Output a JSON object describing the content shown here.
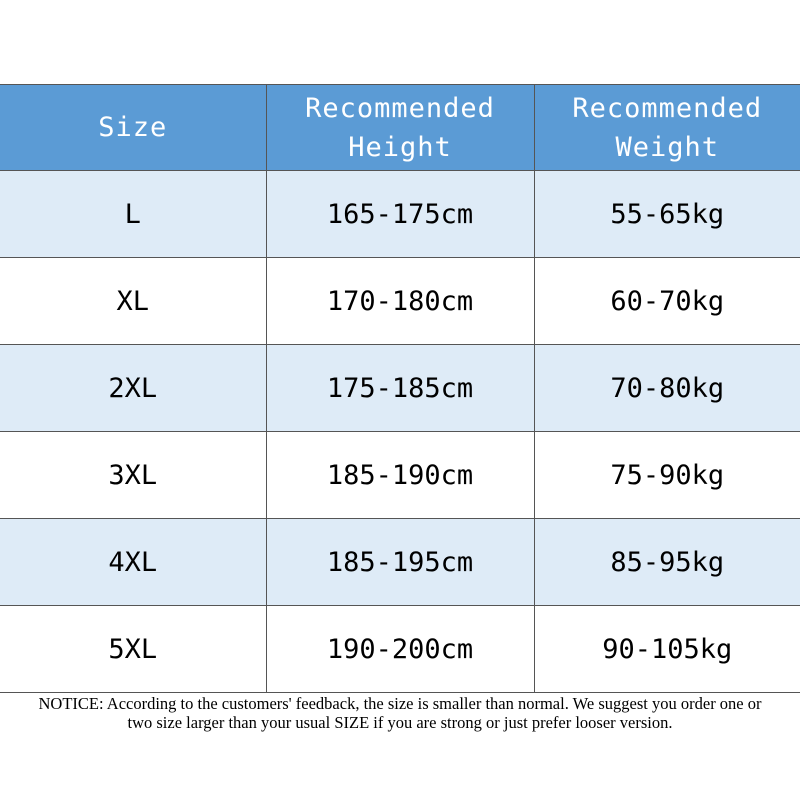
{
  "table": {
    "headers": [
      "Size",
      "Recommended Height",
      "Recommended Weight"
    ],
    "rows": [
      {
        "size": "L",
        "height": "165-175cm",
        "weight": "55-65kg"
      },
      {
        "size": "XL",
        "height": "170-180cm",
        "weight": "60-70kg"
      },
      {
        "size": "2XL",
        "height": "175-185cm",
        "weight": "70-80kg"
      },
      {
        "size": "3XL",
        "height": "185-190cm",
        "weight": "75-90kg"
      },
      {
        "size": "4XL",
        "height": "185-195cm",
        "weight": "85-95kg"
      },
      {
        "size": "5XL",
        "height": "190-200cm",
        "weight": "90-105kg"
      }
    ]
  },
  "notice": "NOTICE: According to the customers' feedback, the size is smaller than normal. We suggest you order one or two size larger than your usual SIZE if you are strong or just prefer looser version.",
  "colors": {
    "header_bg": "#5b9bd5",
    "stripe_bg": "#deebf7",
    "header_text": "#ffffff"
  }
}
